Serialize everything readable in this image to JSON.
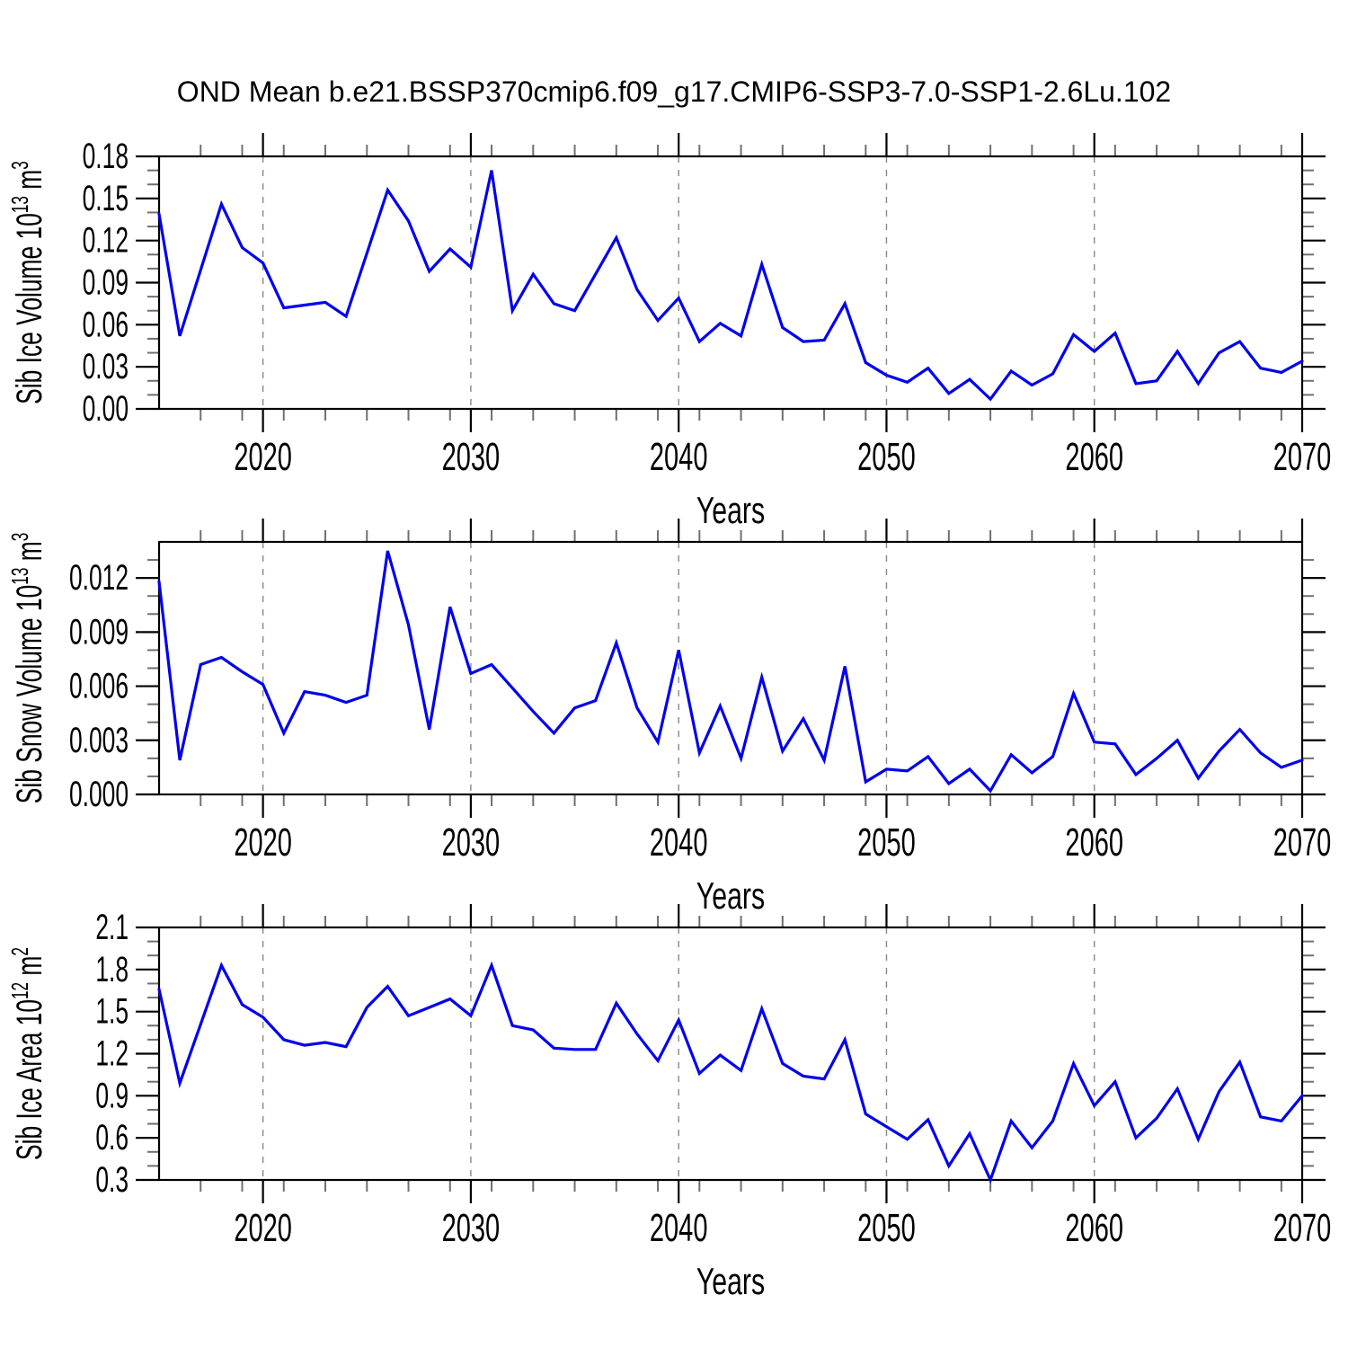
{
  "title": "OND Mean b.e21.BSSP370cmip6.f09_g17.CMIP6-SSP3-7.0-SSP1-2.6Lu.102",
  "colors": {
    "line": "#0000EE",
    "grid": "#888888",
    "axis": "#000000",
    "minor_tick": "#707070",
    "text": "#000000",
    "background": "#FFFFFF"
  },
  "x_axis": {
    "label": "Years",
    "min": 2015,
    "max": 2070,
    "major_ticks": [
      2020,
      2030,
      2040,
      2050,
      2060,
      2070
    ],
    "minor_step": 2,
    "grid_years": [
      2020,
      2030,
      2040,
      2050,
      2060
    ]
  },
  "years": [
    2015,
    2016,
    2017,
    2018,
    2019,
    2020,
    2021,
    2022,
    2023,
    2024,
    2025,
    2026,
    2027,
    2028,
    2029,
    2030,
    2031,
    2032,
    2033,
    2034,
    2035,
    2036,
    2037,
    2038,
    2039,
    2040,
    2041,
    2042,
    2043,
    2044,
    2045,
    2046,
    2047,
    2048,
    2049,
    2050,
    2051,
    2052,
    2053,
    2054,
    2055,
    2056,
    2057,
    2058,
    2059,
    2060,
    2061,
    2062,
    2063,
    2064,
    2065,
    2066,
    2067,
    2068,
    2069,
    2070
  ],
  "chart_data": [
    {
      "type": "line",
      "name": "sib-ice-volume",
      "ylabel": {
        "prefix": "Sib Ice Volume 10",
        "exponent": "13",
        "unit": " m",
        "unit_exponent": "3"
      },
      "xlabel": "Years",
      "ylim": [
        0,
        0.18
      ],
      "y_major_ticks": [
        0,
        0.03,
        0.06,
        0.09,
        0.12,
        0.15,
        0.18
      ],
      "y_minor_step": 0.01,
      "y_tick_decimals": 2,
      "legend": "none",
      "grid": "dashed-decades",
      "values": [
        0.139,
        0.052,
        0.099,
        0.146,
        0.115,
        0.104,
        0.072,
        0.074,
        0.076,
        0.066,
        0.111,
        0.156,
        0.134,
        0.098,
        0.114,
        0.101,
        0.17,
        0.07,
        0.096,
        0.075,
        0.07,
        0.096,
        0.122,
        0.085,
        0.063,
        0.079,
        0.048,
        0.061,
        0.052,
        0.103,
        0.058,
        0.048,
        0.049,
        0.075,
        0.033,
        0.024,
        0.019,
        0.029,
        0.011,
        0.021,
        0.007,
        0.027,
        0.017,
        0.025,
        0.053,
        0.041,
        0.054,
        0.018,
        0.02,
        0.041,
        0.018,
        0.04,
        0.048,
        0.029,
        0.026,
        0.034
      ]
    },
    {
      "type": "line",
      "name": "sib-snow-volume",
      "ylabel": {
        "prefix": "Sib Snow Volume 10",
        "exponent": "13",
        "unit": " m",
        "unit_exponent": "3"
      },
      "xlabel": "Years",
      "ylim": [
        0,
        0.014
      ],
      "y_major_ticks": [
        0,
        0.003,
        0.006,
        0.009,
        0.012
      ],
      "y_minor_step": 0.001,
      "y_tick_decimals": 3,
      "legend": "none",
      "grid": "dashed-decades",
      "values": [
        0.0118,
        0.0019,
        0.0072,
        0.0076,
        0.0068,
        0.0061,
        0.0034,
        0.0057,
        0.0055,
        0.0051,
        0.0055,
        0.0135,
        0.0094,
        0.0036,
        0.0104,
        0.0067,
        0.0072,
        0.0059,
        0.0046,
        0.0034,
        0.0048,
        0.0052,
        0.0084,
        0.0048,
        0.0029,
        0.008,
        0.0023,
        0.0049,
        0.002,
        0.0065,
        0.0024,
        0.0042,
        0.0019,
        0.0071,
        0.0007,
        0.0014,
        0.0013,
        0.0021,
        0.0006,
        0.0014,
        0.0002,
        0.0022,
        0.0012,
        0.0021,
        0.0056,
        0.0029,
        0.0028,
        0.0011,
        0.002,
        0.003,
        0.0009,
        0.0024,
        0.0036,
        0.0023,
        0.0015,
        0.0019
      ]
    },
    {
      "type": "line",
      "name": "sib-ice-area",
      "ylabel": {
        "prefix": "Sib Ice Area 10",
        "exponent": "12",
        "unit": " m",
        "unit_exponent": "2"
      },
      "xlabel": "Years",
      "ylim": [
        0.3,
        2.1
      ],
      "y_major_ticks": [
        0.3,
        0.6,
        0.9,
        1.2,
        1.5,
        1.8,
        2.1
      ],
      "y_minor_step": 0.1,
      "y_tick_decimals": 1,
      "legend": "none",
      "grid": "dashed-decades",
      "values": [
        1.66,
        0.99,
        1.41,
        1.83,
        1.55,
        1.46,
        1.3,
        1.26,
        1.28,
        1.25,
        1.53,
        1.68,
        1.47,
        1.53,
        1.59,
        1.47,
        1.83,
        1.4,
        1.37,
        1.24,
        1.23,
        1.23,
        1.56,
        1.34,
        1.15,
        1.44,
        1.06,
        1.19,
        1.08,
        1.52,
        1.13,
        1.04,
        1.02,
        1.3,
        0.77,
        0.68,
        0.59,
        0.73,
        0.4,
        0.63,
        0.3,
        0.72,
        0.53,
        0.72,
        1.13,
        0.83,
        1.0,
        0.6,
        0.74,
        0.95,
        0.59,
        0.93,
        1.14,
        0.75,
        0.72,
        0.9
      ]
    }
  ]
}
